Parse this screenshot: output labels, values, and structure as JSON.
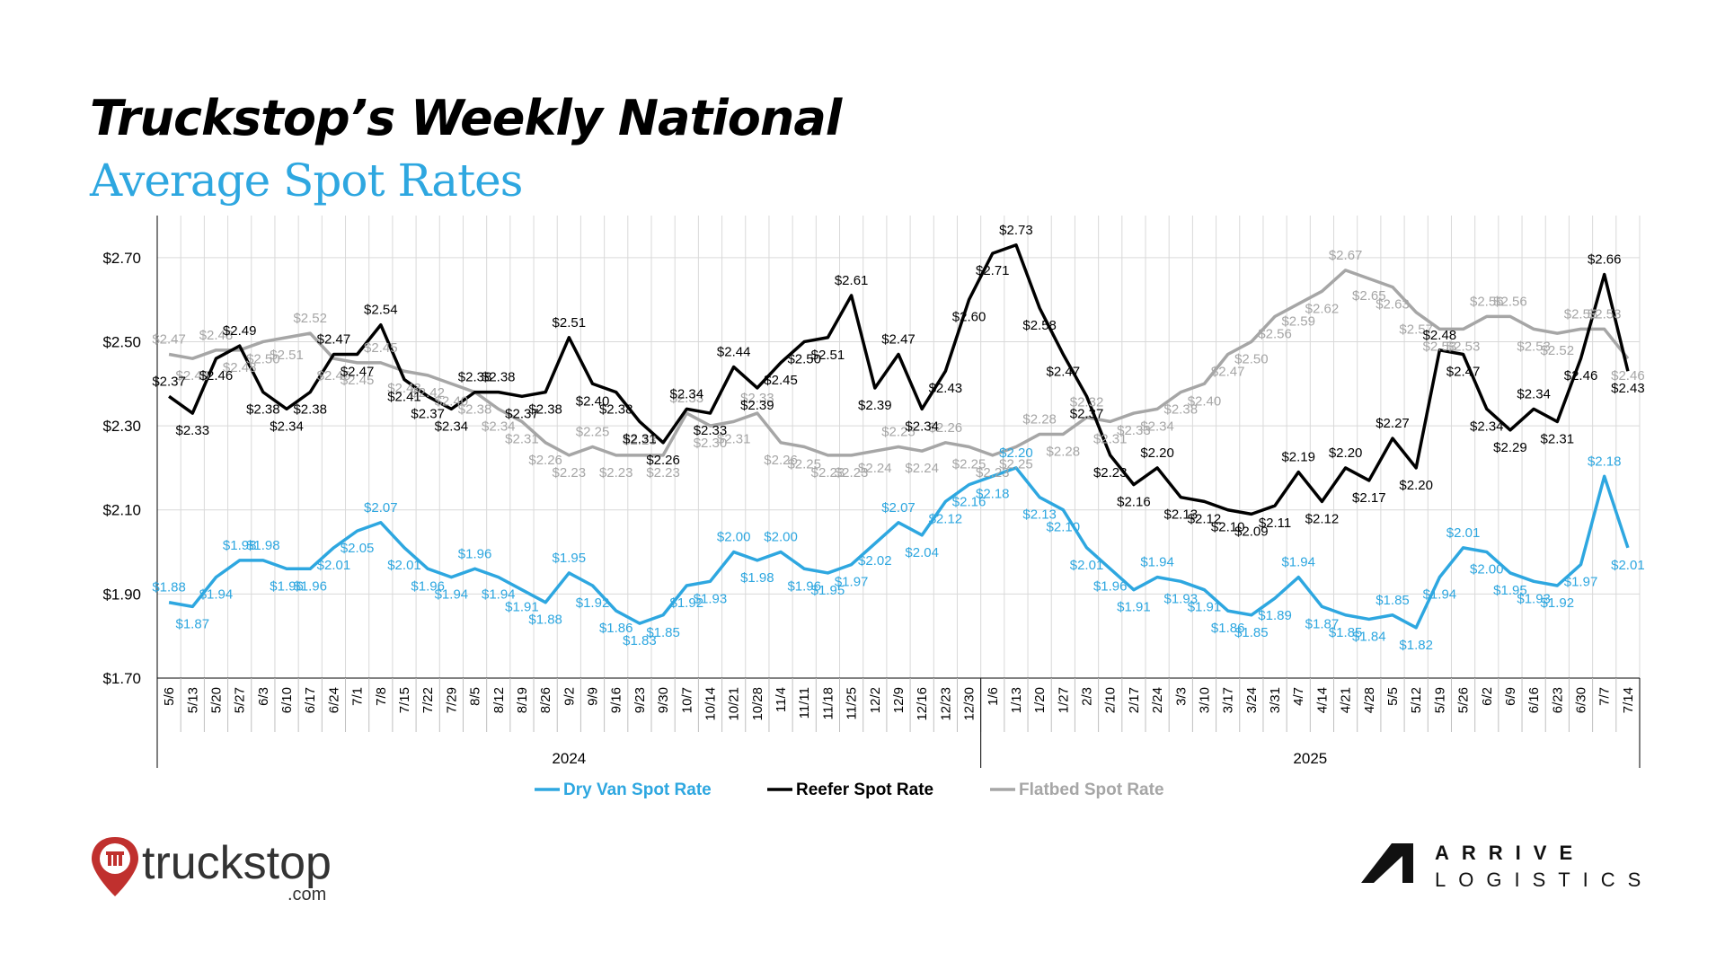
{
  "header": {
    "title": "Truckstop’s Weekly National",
    "subtitle": "Average Spot Rates"
  },
  "branding": {
    "left_logo_text": "truckstop",
    "left_logo_suffix": ".com",
    "right_logo_line1": "ARRIVE",
    "right_logo_line2": "LOGISTICS"
  },
  "colors": {
    "dry_van": "#2ea7e0",
    "reefer": "#000000",
    "flatbed": "#a6a6a6",
    "grid": "#d9d9d9",
    "title_accent": "#2ea7e0"
  },
  "chart_data": {
    "type": "line",
    "title": "",
    "xlabel": "",
    "ylabel": "",
    "ylim": [
      1.7,
      2.8
    ],
    "y_ticks": [
      "$1.70",
      "$1.90",
      "$2.10",
      "$2.30",
      "$2.50",
      "$2.70"
    ],
    "y_tick_values": [
      1.7,
      1.9,
      2.1,
      2.3,
      2.5,
      2.7
    ],
    "grid": true,
    "legend_position": "bottom",
    "categories": [
      "5/6",
      "5/13",
      "5/20",
      "5/27",
      "6/3",
      "6/10",
      "6/17",
      "6/24",
      "7/1",
      "7/8",
      "7/15",
      "7/22",
      "7/29",
      "8/5",
      "8/12",
      "8/19",
      "8/26",
      "9/2",
      "9/9",
      "9/16",
      "9/23",
      "9/30",
      "10/7",
      "10/14",
      "10/21",
      "10/28",
      "11/4",
      "11/11",
      "11/18",
      "11/25",
      "12/2",
      "12/9",
      "12/16",
      "12/23",
      "12/30",
      "1/6",
      "1/13",
      "1/20",
      "1/27",
      "2/3",
      "2/10",
      "2/17",
      "2/24",
      "3/3",
      "3/10",
      "3/17",
      "3/24",
      "3/31",
      "4/7",
      "4/14",
      "4/21",
      "4/28",
      "5/5",
      "5/12",
      "5/19",
      "5/26",
      "6/2",
      "6/9",
      "6/16",
      "6/23",
      "6/30",
      "7/7",
      "7/14"
    ],
    "year_groups": [
      {
        "label": "2024",
        "start": 0,
        "end": 34
      },
      {
        "label": "2025",
        "start": 35,
        "end": 62
      }
    ],
    "series": [
      {
        "name": "Dry Van Spot Rate",
        "color": "#2ea7e0",
        "values": [
          1.88,
          1.87,
          1.94,
          1.98,
          1.98,
          1.96,
          1.96,
          2.01,
          2.05,
          2.07,
          2.01,
          1.96,
          1.94,
          1.96,
          1.94,
          1.91,
          1.88,
          1.95,
          1.92,
          1.86,
          1.83,
          1.85,
          1.92,
          1.93,
          2.0,
          1.98,
          2.0,
          1.96,
          1.95,
          1.97,
          2.02,
          2.07,
          2.04,
          2.12,
          2.16,
          2.18,
          2.2,
          2.13,
          2.1,
          2.01,
          1.96,
          1.91,
          1.94,
          1.93,
          1.91,
          1.86,
          1.85,
          1.89,
          1.94,
          1.87,
          1.85,
          1.84,
          1.85,
          1.82,
          1.94,
          2.01,
          2.0,
          1.95,
          1.93,
          1.92,
          1.97,
          2.18,
          2.01
        ]
      },
      {
        "name": "Reefer Spot Rate",
        "color": "#000000",
        "values": [
          2.37,
          2.33,
          2.46,
          2.49,
          2.38,
          2.34,
          2.38,
          2.47,
          2.47,
          2.54,
          2.41,
          2.37,
          2.34,
          2.38,
          2.38,
          2.37,
          2.38,
          2.51,
          2.4,
          2.38,
          2.31,
          2.26,
          2.34,
          2.33,
          2.44,
          2.39,
          2.45,
          2.5,
          2.51,
          2.61,
          2.39,
          2.47,
          2.34,
          2.43,
          2.6,
          2.71,
          2.73,
          2.58,
          2.47,
          2.37,
          2.23,
          2.16,
          2.2,
          2.13,
          2.12,
          2.1,
          2.09,
          2.11,
          2.19,
          2.12,
          2.2,
          2.17,
          2.27,
          2.2,
          2.48,
          2.47,
          2.34,
          2.29,
          2.34,
          2.31,
          2.46,
          2.66,
          2.43
        ]
      },
      {
        "name": "Flatbed Spot Rate",
        "color": "#a6a6a6",
        "values": [
          2.47,
          2.46,
          2.48,
          2.48,
          2.5,
          2.51,
          2.52,
          2.46,
          2.45,
          2.45,
          2.43,
          2.42,
          2.4,
          2.38,
          2.34,
          2.31,
          2.26,
          2.23,
          2.25,
          2.23,
          2.23,
          2.23,
          2.33,
          2.3,
          2.31,
          2.33,
          2.26,
          2.25,
          2.23,
          2.23,
          2.24,
          2.25,
          2.24,
          2.26,
          2.25,
          2.23,
          2.25,
          2.28,
          2.28,
          2.32,
          2.31,
          2.33,
          2.34,
          2.38,
          2.4,
          2.47,
          2.5,
          2.56,
          2.59,
          2.62,
          2.67,
          2.65,
          2.63,
          2.57,
          2.53,
          2.53,
          2.56,
          2.56,
          2.53,
          2.52,
          2.53,
          2.53,
          2.46
        ]
      }
    ]
  }
}
